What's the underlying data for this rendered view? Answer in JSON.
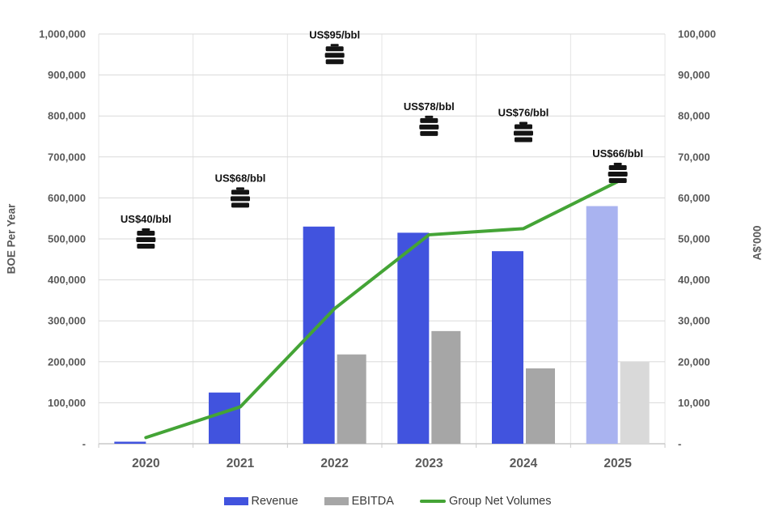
{
  "chart_data": {
    "type": "combo_bar_line",
    "categories": [
      "2020",
      "2021",
      "2022",
      "2023",
      "2024",
      "2025"
    ],
    "series": [
      {
        "name": "Revenue",
        "type": "bar",
        "axis": "right",
        "unit": "A$'000",
        "values": [
          500,
          12500,
          53000,
          51500,
          47000,
          58000
        ],
        "color": "#4153DE",
        "forecast_color": "#A9B3F0",
        "forecast_indices": [
          5
        ]
      },
      {
        "name": "EBITDA",
        "type": "bar",
        "axis": "right",
        "unit": "A$'000",
        "values": [
          null,
          null,
          21800,
          27500,
          18400,
          20000
        ],
        "color": "#A6A6A6",
        "forecast_color": "#D9D9D9",
        "forecast_indices": [
          5
        ]
      },
      {
        "name": "Group Net Volumes",
        "type": "line",
        "axis": "left",
        "unit": "BOE Per Year",
        "values": [
          15000,
          90000,
          330000,
          510000,
          525000,
          640000
        ],
        "color": "#44A436"
      }
    ],
    "oil_price_markers": [
      {
        "category": "2020",
        "label": "US$40/bbl",
        "y_boe": 500000
      },
      {
        "category": "2021",
        "label": "US$68/bbl",
        "y_boe": 600000
      },
      {
        "category": "2022",
        "label": "US$95/bbl",
        "y_boe": 950000
      },
      {
        "category": "2023",
        "label": "US$78/bbl",
        "y_boe": 775000
      },
      {
        "category": "2024",
        "label": "US$76/bbl",
        "y_boe": 760000
      },
      {
        "category": "2025",
        "label": "US$66/bbl",
        "y_boe": 660000
      }
    ],
    "left_axis": {
      "title": "BOE Per Year",
      "min": 0,
      "max": 1000000,
      "step": 100000,
      "zero_label": "-",
      "tick_labels": [
        "-",
        "100,000",
        "200,000",
        "300,000",
        "400,000",
        "500,000",
        "600,000",
        "700,000",
        "800,000",
        "900,000",
        "1,000,000"
      ]
    },
    "right_axis": {
      "title": "A$'000",
      "min": 0,
      "max": 100000,
      "step": 10000,
      "zero_label": "-",
      "tick_labels": [
        "-",
        "10,000",
        "20,000",
        "30,000",
        "40,000",
        "50,000",
        "60,000",
        "70,000",
        "80,000",
        "90,000",
        "100,000"
      ]
    },
    "legend": [
      "Revenue",
      "EBITDA",
      "Group Net Volumes"
    ],
    "legend_position": "bottom",
    "grid": {
      "horizontal": true,
      "vertical": true
    },
    "colors": {
      "revenue": "#4153DE",
      "revenue_forecast": "#A9B3F0",
      "ebitda": "#A6A6A6",
      "ebitda_forecast": "#D9D9D9",
      "volume_line": "#44A436",
      "grid_h": "#DADADA",
      "grid_v": "#E4E4E4",
      "axis_line": "#C9C9C9",
      "tick_text": "#595959",
      "category_text": "#595959",
      "marker": "#141414",
      "marker_text": "#111111"
    }
  }
}
